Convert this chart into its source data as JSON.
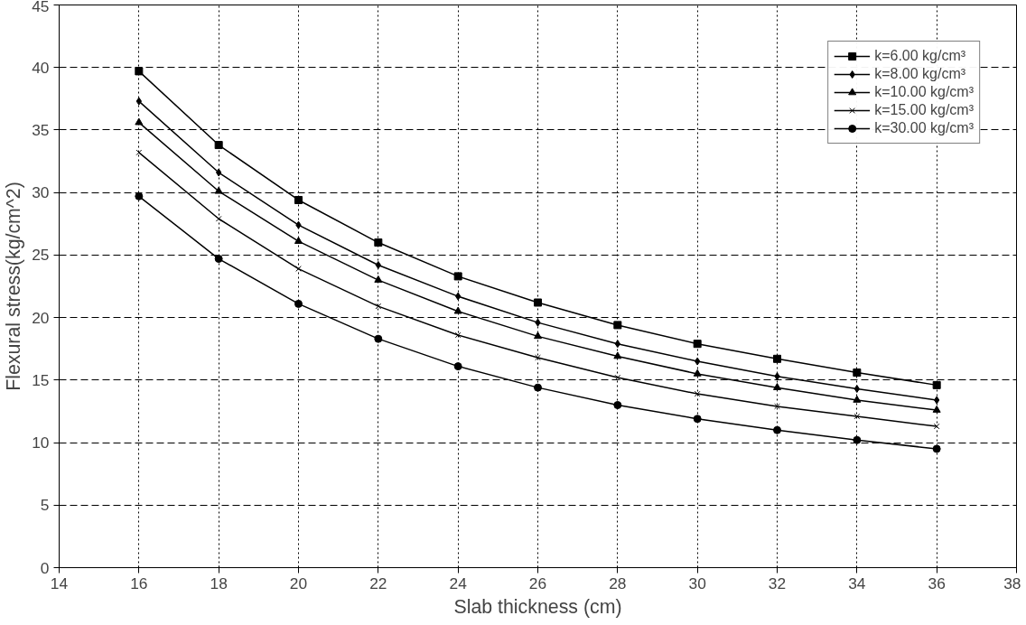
{
  "chart_data": {
    "type": "line",
    "xlabel": "Slab thickness (cm)",
    "ylabel": "Flexural stress(kg/cm^2)",
    "x": [
      16,
      18,
      20,
      22,
      24,
      26,
      28,
      30,
      32,
      34,
      36
    ],
    "xlim": [
      14,
      38
    ],
    "xticks": [
      14,
      16,
      18,
      20,
      22,
      24,
      26,
      28,
      30,
      32,
      34,
      36,
      38
    ],
    "ylim": [
      0,
      45
    ],
    "yticks": [
      0,
      5,
      10,
      15,
      20,
      25,
      30,
      35,
      40,
      45
    ],
    "grid": true,
    "legend": "top right",
    "line_style": "solid",
    "series": [
      {
        "name": "k=6.00 kg/cm³",
        "color": "#000000",
        "marker": "square",
        "values": [
          39.7,
          33.8,
          29.4,
          26.0,
          23.3,
          21.2,
          19.4,
          17.9,
          16.7,
          15.6,
          14.6
        ]
      },
      {
        "name": "k=8.00 kg/cm³",
        "color": "#000000",
        "marker": "diamond",
        "values": [
          37.3,
          31.6,
          27.4,
          24.2,
          21.7,
          19.6,
          17.9,
          16.5,
          15.3,
          14.3,
          13.4
        ]
      },
      {
        "name": "k=10.00 kg/cm³",
        "color": "#000000",
        "marker": "triangle",
        "values": [
          35.6,
          30.1,
          26.1,
          23.0,
          20.5,
          18.5,
          16.9,
          15.5,
          14.4,
          13.4,
          12.6
        ]
      },
      {
        "name": "k=15.00 kg/cm³",
        "color": "#000000",
        "marker": "cross",
        "values": [
          33.2,
          27.9,
          23.9,
          20.9,
          18.6,
          16.8,
          15.2,
          13.9,
          12.9,
          12.1,
          11.3
        ]
      },
      {
        "name": "k=30.00 kg/cm³",
        "color": "#000000",
        "marker": "circle",
        "values": [
          29.7,
          24.7,
          21.1,
          18.3,
          16.1,
          14.4,
          13.0,
          11.9,
          11.0,
          10.2,
          9.5
        ]
      }
    ]
  }
}
